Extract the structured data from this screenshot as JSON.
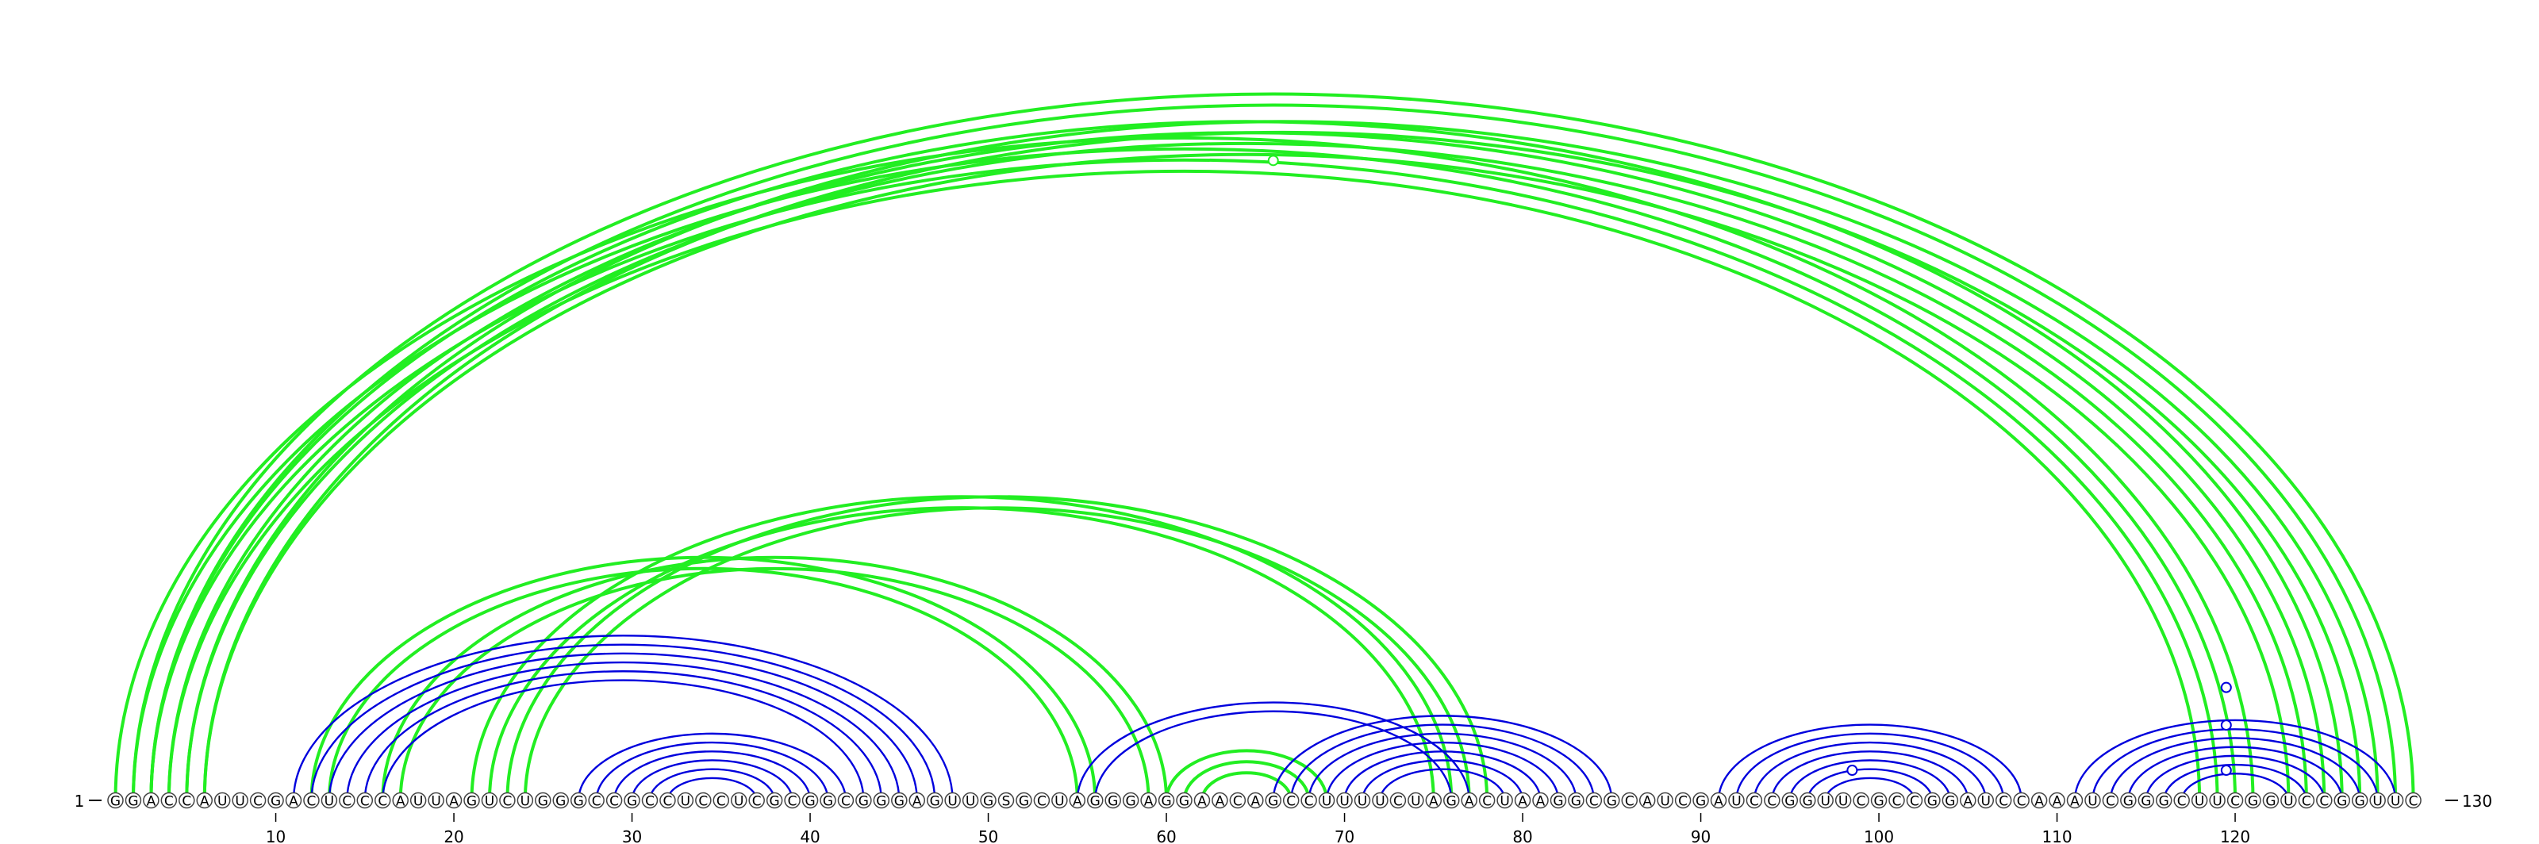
{
  "sequence": "GGACCAUUCGACUCCCAUUAGUCUGGGCCGCCUCCUCGCGGCGGGAGUUGSGCUAGGGAGGAACAGCCUUUUCUAGACUAAGGCGCAUCGAUCCGGUUCGCCGGAUCCAAAUCGGGCUUCGGUCCGGUUC",
  "start_label": "1",
  "end_label": "130",
  "ruler_ticks": [
    "10",
    "20",
    "30",
    "40",
    "50",
    "60",
    "70",
    "80",
    "90",
    "100",
    "110",
    "120"
  ],
  "colors": {
    "pair_arc": "#0000dd",
    "pseudoknot_arc": "#22ee22",
    "nucleotide_stroke": "#444444",
    "text": "#000000"
  },
  "arc_groups": [
    {
      "color": "green",
      "i": 1,
      "j": 121,
      "count": 4
    },
    {
      "color": "green",
      "i": 3,
      "j": 126,
      "count": 4
    },
    {
      "color": "green",
      "i": 5,
      "j": 128,
      "count": 2
    },
    {
      "color": "green",
      "i": 2,
      "j": 130,
      "count": 2
    },
    {
      "color": "blue",
      "i": 11,
      "j": 48,
      "count": 6
    },
    {
      "color": "green",
      "i": 12,
      "j": 56,
      "count": 2
    },
    {
      "color": "green",
      "i": 16,
      "j": 60,
      "count": 2
    },
    {
      "color": "green",
      "i": 21,
      "j": 76,
      "count": 2
    },
    {
      "color": "green",
      "i": 23,
      "j": 78,
      "count": 2
    },
    {
      "color": "blue",
      "i": 27,
      "j": 42,
      "count": 6
    },
    {
      "color": "blue",
      "i": 55,
      "j": 77,
      "count": 2
    },
    {
      "color": "green",
      "i": 60,
      "j": 69,
      "count": 3
    },
    {
      "color": "blue",
      "i": 66,
      "j": 85,
      "count": 7
    },
    {
      "color": "blue",
      "i": 91,
      "j": 108,
      "count": 7
    },
    {
      "color": "blue",
      "i": 111,
      "j": 129,
      "count": 7
    }
  ],
  "markers": [
    {
      "pos": 66.0,
      "height": 0.85
    },
    {
      "pos": 98.5,
      "height": 0.04
    },
    {
      "pos": 119.5,
      "height": 0.15
    },
    {
      "pos": 119.5,
      "height": 0.1
    },
    {
      "pos": 119.5,
      "height": 0.04
    }
  ]
}
